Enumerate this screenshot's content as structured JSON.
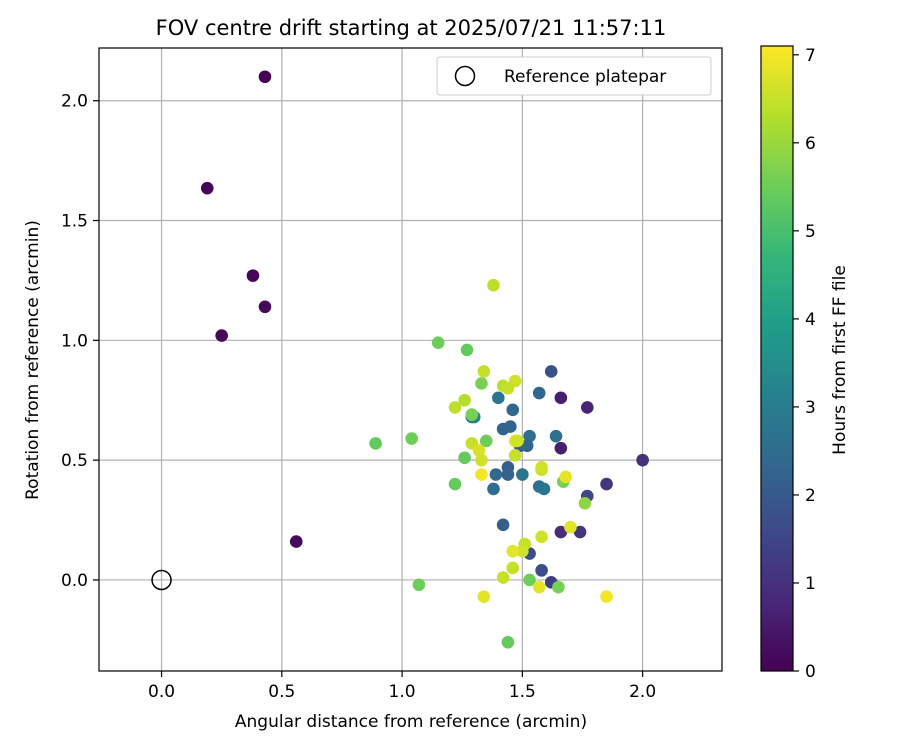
{
  "chart_data": {
    "type": "scatter",
    "title": "FOV centre drift starting at 2025/07/21 11:57:11",
    "xlabel": "Angular distance from reference (arcmin)",
    "ylabel": "Rotation from reference (arcmin)",
    "xlim": [
      -0.26,
      2.33
    ],
    "ylim": [
      -0.38,
      2.22
    ],
    "xticks": [
      "0.0",
      "0.5",
      "1.0",
      "1.5",
      "2.0"
    ],
    "xtick_values": [
      0.0,
      0.5,
      1.0,
      1.5,
      2.0
    ],
    "yticks": [
      "0.0",
      "0.5",
      "1.0",
      "1.5",
      "2.0"
    ],
    "ytick_values": [
      0.0,
      0.5,
      1.0,
      1.5,
      2.0
    ],
    "grid": true,
    "legend": {
      "position": "top-right",
      "entries": [
        "Reference platepar"
      ]
    },
    "reference_point": {
      "x": 0.0,
      "y": 0.0
    },
    "colorbar": {
      "label": "Hours from first FF file",
      "range": [
        0,
        7.1
      ],
      "ticks": [
        "0",
        "1",
        "2",
        "3",
        "4",
        "5",
        "6",
        "7"
      ],
      "tick_values": [
        0,
        1,
        2,
        3,
        4,
        5,
        6,
        7
      ],
      "colormap": "viridis",
      "stops": [
        "#440154",
        "#482878",
        "#3e4989",
        "#31688e",
        "#26828e",
        "#1f9e89",
        "#35b779",
        "#6ece58",
        "#b5de2b",
        "#fde725"
      ]
    },
    "points": [
      {
        "x": 0.43,
        "y": 2.1,
        "c": 0.05
      },
      {
        "x": 0.19,
        "y": 1.635,
        "c": 0.1
      },
      {
        "x": 0.38,
        "y": 1.27,
        "c": 0.1
      },
      {
        "x": 0.43,
        "y": 1.14,
        "c": 0.15
      },
      {
        "x": 0.25,
        "y": 1.02,
        "c": 0.15
      },
      {
        "x": 0.56,
        "y": 0.16,
        "c": 0.2
      },
      {
        "x": 1.66,
        "y": 0.76,
        "c": 0.6
      },
      {
        "x": 1.77,
        "y": 0.72,
        "c": 0.7
      },
      {
        "x": 1.66,
        "y": 0.55,
        "c": 0.6
      },
      {
        "x": 2.0,
        "y": 0.5,
        "c": 1.0
      },
      {
        "x": 1.85,
        "y": 0.4,
        "c": 1.1
      },
      {
        "x": 1.77,
        "y": 0.35,
        "c": 1.5
      },
      {
        "x": 1.66,
        "y": 0.2,
        "c": 0.9
      },
      {
        "x": 1.74,
        "y": 0.2,
        "c": 1.1
      },
      {
        "x": 1.62,
        "y": -0.01,
        "c": 1.3
      },
      {
        "x": 1.58,
        "y": 0.04,
        "c": 1.7
      },
      {
        "x": 1.53,
        "y": 0.11,
        "c": 1.7
      },
      {
        "x": 1.62,
        "y": 0.87,
        "c": 1.8
      },
      {
        "x": 1.57,
        "y": 0.78,
        "c": 2.3
      },
      {
        "x": 1.46,
        "y": 0.71,
        "c": 2.4
      },
      {
        "x": 1.4,
        "y": 0.76,
        "c": 2.8
      },
      {
        "x": 1.42,
        "y": 0.63,
        "c": 2.3
      },
      {
        "x": 1.45,
        "y": 0.64,
        "c": 2.3
      },
      {
        "x": 1.53,
        "y": 0.6,
        "c": 2.6
      },
      {
        "x": 1.64,
        "y": 0.6,
        "c": 2.6
      },
      {
        "x": 1.49,
        "y": 0.56,
        "c": 2.0
      },
      {
        "x": 1.52,
        "y": 0.56,
        "c": 2.3
      },
      {
        "x": 1.44,
        "y": 0.47,
        "c": 2.1
      },
      {
        "x": 1.44,
        "y": 0.44,
        "c": 2.2
      },
      {
        "x": 1.39,
        "y": 0.44,
        "c": 2.4
      },
      {
        "x": 1.38,
        "y": 0.38,
        "c": 2.5
      },
      {
        "x": 1.5,
        "y": 0.44,
        "c": 2.8
      },
      {
        "x": 1.57,
        "y": 0.39,
        "c": 2.6
      },
      {
        "x": 1.59,
        "y": 0.38,
        "c": 2.8
      },
      {
        "x": 1.42,
        "y": 0.23,
        "c": 2.1
      },
      {
        "x": 1.29,
        "y": 0.68,
        "c": 3.1
      },
      {
        "x": 1.3,
        "y": 0.68,
        "c": 3.2
      },
      {
        "x": 1.15,
        "y": 0.99,
        "c": 5.5
      },
      {
        "x": 1.27,
        "y": 0.96,
        "c": 5.4
      },
      {
        "x": 1.33,
        "y": 0.82,
        "c": 5.6
      },
      {
        "x": 1.29,
        "y": 0.69,
        "c": 5.6
      },
      {
        "x": 1.35,
        "y": 0.58,
        "c": 5.5
      },
      {
        "x": 1.26,
        "y": 0.51,
        "c": 5.4
      },
      {
        "x": 1.22,
        "y": 0.4,
        "c": 5.4
      },
      {
        "x": 1.04,
        "y": 0.59,
        "c": 5.5
      },
      {
        "x": 0.89,
        "y": 0.57,
        "c": 5.4
      },
      {
        "x": 1.07,
        "y": -0.02,
        "c": 5.5
      },
      {
        "x": 1.44,
        "y": -0.26,
        "c": 5.4
      },
      {
        "x": 1.53,
        "y": 0.0,
        "c": 5.5
      },
      {
        "x": 1.65,
        "y": -0.03,
        "c": 5.6
      },
      {
        "x": 1.67,
        "y": 0.41,
        "c": 5.6
      },
      {
        "x": 1.76,
        "y": 0.32,
        "c": 5.9
      },
      {
        "x": 1.38,
        "y": 1.23,
        "c": 6.4
      },
      {
        "x": 1.26,
        "y": 0.75,
        "c": 6.3
      },
      {
        "x": 1.22,
        "y": 0.72,
        "c": 6.4
      },
      {
        "x": 1.34,
        "y": 0.87,
        "c": 6.5
      },
      {
        "x": 1.42,
        "y": 0.81,
        "c": 6.4
      },
      {
        "x": 1.47,
        "y": 0.83,
        "c": 6.6
      },
      {
        "x": 1.44,
        "y": 0.8,
        "c": 6.5
      },
      {
        "x": 1.29,
        "y": 0.57,
        "c": 6.5
      },
      {
        "x": 1.32,
        "y": 0.54,
        "c": 6.7
      },
      {
        "x": 1.33,
        "y": 0.5,
        "c": 6.6
      },
      {
        "x": 1.47,
        "y": 0.58,
        "c": 6.8
      },
      {
        "x": 1.48,
        "y": 0.58,
        "c": 6.6
      },
      {
        "x": 1.47,
        "y": 0.52,
        "c": 6.5
      },
      {
        "x": 1.58,
        "y": 0.46,
        "c": 6.5
      },
      {
        "x": 1.58,
        "y": 0.47,
        "c": 6.6
      },
      {
        "x": 1.68,
        "y": 0.43,
        "c": 6.8
      },
      {
        "x": 1.33,
        "y": 0.44,
        "c": 7.0
      },
      {
        "x": 1.7,
        "y": 0.22,
        "c": 6.8
      },
      {
        "x": 1.58,
        "y": 0.18,
        "c": 6.6
      },
      {
        "x": 1.51,
        "y": 0.15,
        "c": 6.5
      },
      {
        "x": 1.5,
        "y": 0.12,
        "c": 6.6
      },
      {
        "x": 1.46,
        "y": 0.12,
        "c": 6.8
      },
      {
        "x": 1.46,
        "y": 0.05,
        "c": 6.5
      },
      {
        "x": 1.42,
        "y": 0.01,
        "c": 6.5
      },
      {
        "x": 1.57,
        "y": -0.03,
        "c": 6.8
      },
      {
        "x": 1.34,
        "y": -0.07,
        "c": 6.8
      },
      {
        "x": 1.85,
        "y": -0.07,
        "c": 7.0
      }
    ]
  }
}
